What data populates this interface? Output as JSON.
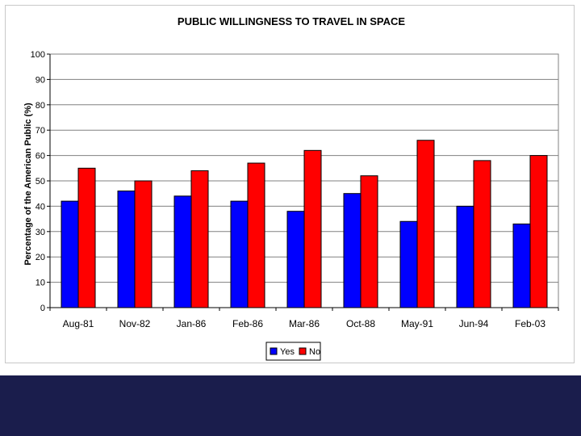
{
  "colors": {
    "yes": "#0000ff",
    "no": "#ff0000",
    "plot_background": "#ffffff",
    "gridline": "#808080",
    "footer_bar": "#1a1d4c"
  },
  "chart_data": {
    "type": "bar",
    "title": "PUBLIC WILLINGNESS TO TRAVEL IN SPACE",
    "xlabel": "",
    "ylabel": "Percentage of the American Public (%)",
    "ylim": [
      0,
      100
    ],
    "yticks": [
      0,
      10,
      20,
      30,
      40,
      50,
      60,
      70,
      80,
      90,
      100
    ],
    "grid": true,
    "legend_position": "bottom-center",
    "categories": [
      "Aug-81",
      "Nov-82",
      "Jan-86",
      "Feb-86",
      "Mar-86",
      "Oct-88",
      "May-91",
      "Jun-94",
      "Feb-03"
    ],
    "series": [
      {
        "name": "Yes",
        "values": [
          42,
          46,
          44,
          42,
          38,
          45,
          34,
          40,
          33
        ]
      },
      {
        "name": "No",
        "values": [
          55,
          50,
          54,
          57,
          62,
          52,
          66,
          58,
          60
        ]
      }
    ]
  }
}
